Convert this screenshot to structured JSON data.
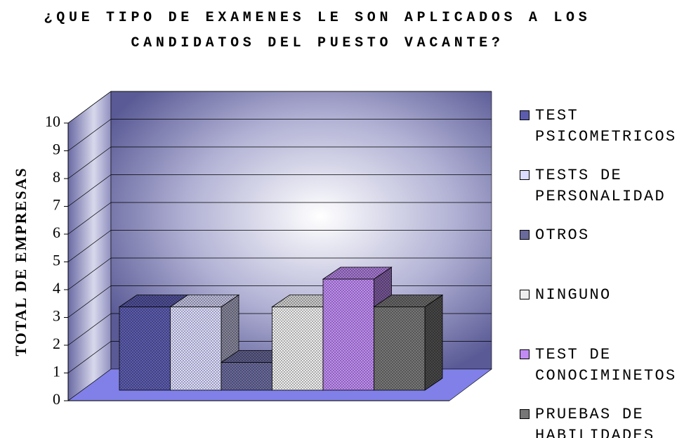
{
  "chart_data": {
    "type": "bar3d",
    "title": "¿QUE TIPO DE EXAMENES LE SON APLICADOS A LOS CANDIDATOS DEL PUESTO VACANTE?",
    "y_label": "TOTAL DE EMPRESAS",
    "ylim": [
      0,
      10
    ],
    "yticks": [
      0,
      1,
      2,
      3,
      4,
      5,
      6,
      7,
      8,
      9,
      10
    ],
    "grid": true,
    "legend": "right",
    "series": [
      {
        "name": "TEST PSICOMETRICOS",
        "color": "#5c5cae",
        "values": [
          3
        ]
      },
      {
        "name": "TESTS DE PERSONALIDAD",
        "color": "#dcdcff",
        "values": [
          3
        ]
      },
      {
        "name": "OTROS",
        "color": "#6a6a9c",
        "values": [
          1
        ]
      },
      {
        "name": "NINGUNO",
        "color": "#eeeeee",
        "values": [
          3
        ]
      },
      {
        "name": "TEST DE CONOCIMINETOS",
        "color": "#c08cf4",
        "values": [
          4
        ]
      },
      {
        "name": "PRUEBAS DE HABILIDADES",
        "color": "#777777",
        "values": [
          3
        ]
      }
    ]
  }
}
